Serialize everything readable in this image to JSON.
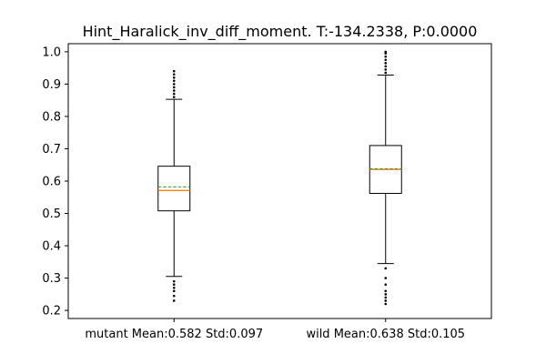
{
  "chart_data": {
    "type": "box",
    "title": "Hint_Haralick_inv_diff_moment. T:-134.2338, P:0.0000",
    "xlabel": "",
    "ylabel": "",
    "categories": [
      "mutant Mean:0.582 Std:0.097",
      "wild Mean:0.638 Std:0.105"
    ],
    "ylim": [
      0.175,
      1.025
    ],
    "yticks": [
      "0.2",
      "0.3",
      "0.4",
      "0.5",
      "0.6",
      "0.7",
      "0.8",
      "0.9",
      "1.0"
    ],
    "ytick_values": [
      0.2,
      0.3,
      0.4,
      0.5,
      0.6,
      0.7,
      0.8,
      0.9,
      1.0
    ],
    "grid": false,
    "boxes": [
      {
        "whisker_low": 0.305,
        "q1": 0.508,
        "median": 0.571,
        "mean": 0.582,
        "q3": 0.646,
        "whisker_high": 0.853,
        "outliers_low": [
          0.23,
          0.245,
          0.26,
          0.27,
          0.28,
          0.29
        ],
        "outliers_high": [
          0.86,
          0.87,
          0.88,
          0.89,
          0.9,
          0.91,
          0.92,
          0.93,
          0.94
        ]
      },
      {
        "whisker_low": 0.345,
        "q1": 0.562,
        "median": 0.636,
        "mean": 0.638,
        "q3": 0.71,
        "whisker_high": 0.928,
        "outliers_low": [
          0.22,
          0.23,
          0.24,
          0.25,
          0.26,
          0.28,
          0.3,
          0.33
        ],
        "outliers_high": [
          0.935,
          0.945,
          0.955,
          0.965,
          0.975,
          0.985,
          0.995,
          1.0
        ]
      }
    ],
    "colors": {
      "box": "#000000",
      "median": "#ff7f0e",
      "mean": "#2ca02c"
    }
  }
}
